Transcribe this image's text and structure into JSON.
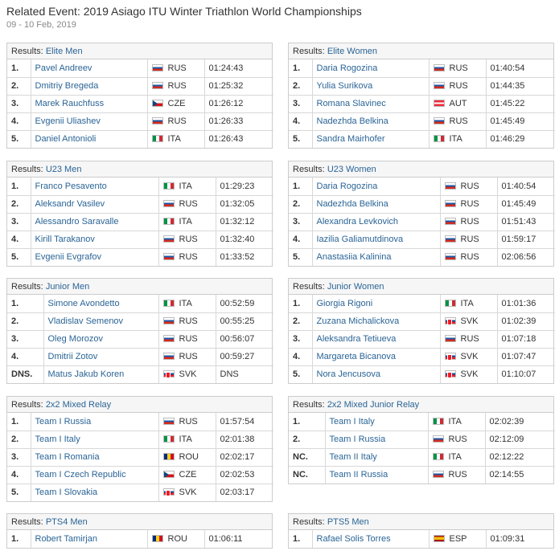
{
  "header": {
    "title": "Related Event: 2019 Asiago ITU Winter Triathlon World Championships",
    "date": "09 - 10 Feb, 2019",
    "results_prefix": "Results:"
  },
  "panels": [
    {
      "title": "Elite Men",
      "rows": [
        {
          "rank": "1.",
          "name": "Pavel Andreev",
          "country": "RUS",
          "time": "01:24:43"
        },
        {
          "rank": "2.",
          "name": "Dmitriy Bregeda",
          "country": "RUS",
          "time": "01:25:32"
        },
        {
          "rank": "3.",
          "name": "Marek Rauchfuss",
          "country": "CZE",
          "time": "01:26:12"
        },
        {
          "rank": "4.",
          "name": "Evgenii Uliashev",
          "country": "RUS",
          "time": "01:26:33"
        },
        {
          "rank": "5.",
          "name": "Daniel Antonioli",
          "country": "ITA",
          "time": "01:26:43"
        }
      ]
    },
    {
      "title": "Elite Women",
      "rows": [
        {
          "rank": "1.",
          "name": "Daria Rogozina",
          "country": "RUS",
          "time": "01:40:54"
        },
        {
          "rank": "2.",
          "name": "Yulia Surikova",
          "country": "RUS",
          "time": "01:44:35"
        },
        {
          "rank": "3.",
          "name": "Romana Slavinec",
          "country": "AUT",
          "time": "01:45:22"
        },
        {
          "rank": "4.",
          "name": "Nadezhda Belkina",
          "country": "RUS",
          "time": "01:45:49"
        },
        {
          "rank": "5.",
          "name": "Sandra Mairhofer",
          "country": "ITA",
          "time": "01:46:29"
        }
      ]
    },
    {
      "title": "U23 Men",
      "rows": [
        {
          "rank": "1.",
          "name": "Franco Pesavento",
          "country": "ITA",
          "time": "01:29:23"
        },
        {
          "rank": "2.",
          "name": "Aleksandr Vasilev",
          "country": "RUS",
          "time": "01:32:05"
        },
        {
          "rank": "3.",
          "name": "Alessandro Saravalle",
          "country": "ITA",
          "time": "01:32:12"
        },
        {
          "rank": "4.",
          "name": "Kirill Tarakanov",
          "country": "RUS",
          "time": "01:32:40"
        },
        {
          "rank": "5.",
          "name": "Evgenii Evgrafov",
          "country": "RUS",
          "time": "01:33:52"
        }
      ]
    },
    {
      "title": "U23 Women",
      "rows": [
        {
          "rank": "1.",
          "name": "Daria Rogozina",
          "country": "RUS",
          "time": "01:40:54"
        },
        {
          "rank": "2.",
          "name": "Nadezhda Belkina",
          "country": "RUS",
          "time": "01:45:49"
        },
        {
          "rank": "3.",
          "name": "Alexandra Levkovich",
          "country": "RUS",
          "time": "01:51:43"
        },
        {
          "rank": "4.",
          "name": "Iazilia Galiamutdinova",
          "country": "RUS",
          "time": "01:59:17"
        },
        {
          "rank": "5.",
          "name": "Anastasiia Kalinina",
          "country": "RUS",
          "time": "02:06:56"
        }
      ]
    },
    {
      "title": "Junior Men",
      "rows": [
        {
          "rank": "1.",
          "name": "Simone Avondetto",
          "country": "ITA",
          "time": "00:52:59"
        },
        {
          "rank": "2.",
          "name": "Vladislav Semenov",
          "country": "RUS",
          "time": "00:55:25"
        },
        {
          "rank": "3.",
          "name": "Oleg Morozov",
          "country": "RUS",
          "time": "00:56:07"
        },
        {
          "rank": "4.",
          "name": "Dmitrii Zotov",
          "country": "RUS",
          "time": "00:59:27"
        },
        {
          "rank": "DNS.",
          "name": "Matus Jakub Koren",
          "country": "SVK",
          "time": "DNS"
        }
      ]
    },
    {
      "title": "Junior Women",
      "rows": [
        {
          "rank": "1.",
          "name": "Giorgia Rigoni",
          "country": "ITA",
          "time": "01:01:36"
        },
        {
          "rank": "2.",
          "name": "Zuzana Michalickova",
          "country": "SVK",
          "time": "01:02:39"
        },
        {
          "rank": "3.",
          "name": "Aleksandra Tetiueva",
          "country": "RUS",
          "time": "01:07:18"
        },
        {
          "rank": "4.",
          "name": "Margareta Bicanova",
          "country": "SVK",
          "time": "01:07:47"
        },
        {
          "rank": "5.",
          "name": "Nora Jencusova",
          "country": "SVK",
          "time": "01:10:07"
        }
      ]
    },
    {
      "title": "2x2 Mixed Relay",
      "rows": [
        {
          "rank": "1.",
          "name": "Team I Russia",
          "country": "RUS",
          "time": "01:57:54"
        },
        {
          "rank": "2.",
          "name": "Team I Italy",
          "country": "ITA",
          "time": "02:01:38"
        },
        {
          "rank": "3.",
          "name": "Team I Romania",
          "country": "ROU",
          "time": "02:02:17"
        },
        {
          "rank": "4.",
          "name": "Team I Czech Republic",
          "country": "CZE",
          "time": "02:02:53"
        },
        {
          "rank": "5.",
          "name": "Team I Slovakia",
          "country": "SVK",
          "time": "02:03:17"
        }
      ]
    },
    {
      "title": "2x2 Mixed Junior Relay",
      "rows": [
        {
          "rank": "1.",
          "name": "Team I Italy",
          "country": "ITA",
          "time": "02:02:39"
        },
        {
          "rank": "2.",
          "name": "Team I Russia",
          "country": "RUS",
          "time": "02:12:09"
        },
        {
          "rank": "NC.",
          "name": "Team II Italy",
          "country": "ITA",
          "time": "02:12:22"
        },
        {
          "rank": "NC.",
          "name": "Team II Russia",
          "country": "RUS",
          "time": "02:14:55"
        }
      ]
    },
    {
      "title": "PTS4 Men",
      "rows": [
        {
          "rank": "1.",
          "name": "Robert Tamirjan",
          "country": "ROU",
          "time": "01:06:11"
        }
      ]
    },
    {
      "title": "PTS5 Men",
      "rows": [
        {
          "rank": "1.",
          "name": "Rafael Solis Torres",
          "country": "ESP",
          "time": "01:09:31"
        }
      ]
    }
  ]
}
